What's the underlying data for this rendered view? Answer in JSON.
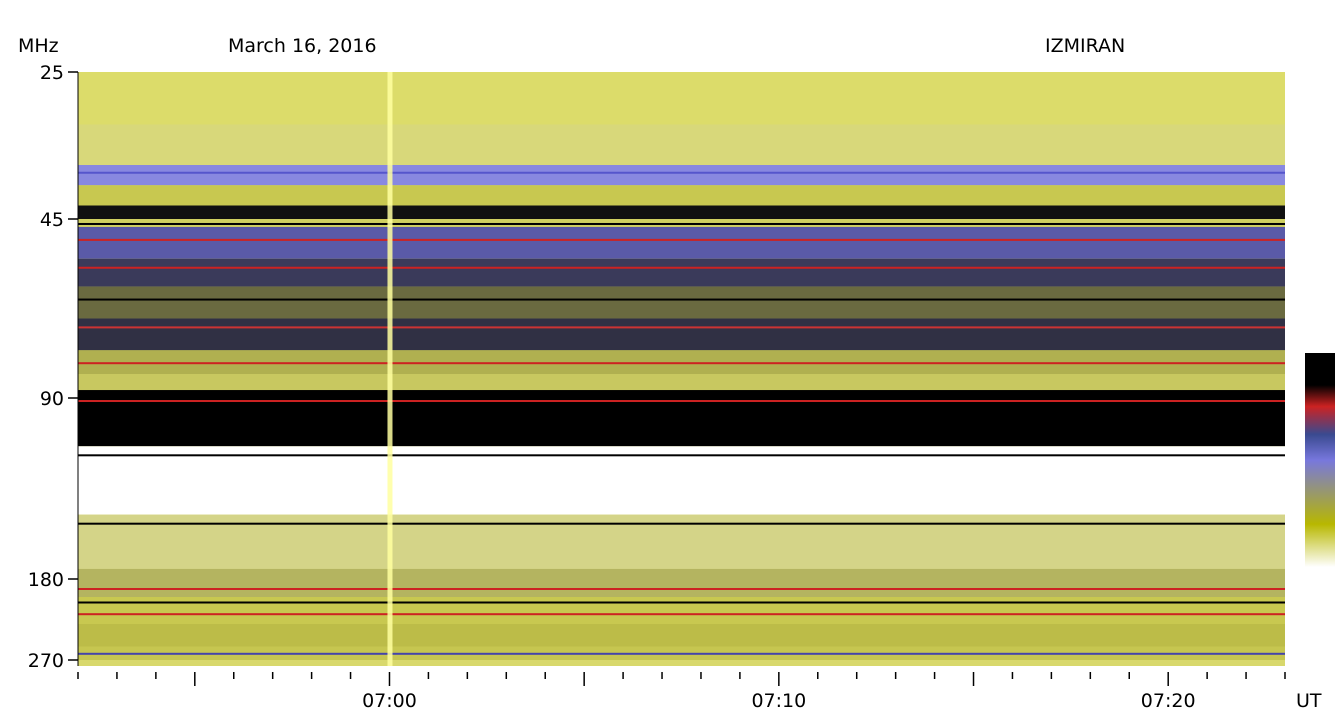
{
  "header": {
    "unit_label": "MHz",
    "date": "March 16, 2016",
    "observatory": "IZMIRAN",
    "time_unit": "UT"
  },
  "chart_data": {
    "type": "heatmap",
    "title": "March 16, 2016",
    "xlabel": "UT",
    "ylabel": "MHz",
    "y_ticks": [
      {
        "label": "25",
        "value": 25
      },
      {
        "label": "45",
        "value": 45
      },
      {
        "label": "90",
        "value": 90
      },
      {
        "label": "180",
        "value": 180
      },
      {
        "label": "270",
        "value": 270
      }
    ],
    "x_start": "06:52",
    "x_end": "07:23",
    "x_ticks": [
      {
        "label": "07:00",
        "value": "07:00"
      },
      {
        "label": "07:10",
        "value": "07:10"
      },
      {
        "label": "07:20",
        "value": "07:20"
      }
    ],
    "colorbar": [
      "#ffffff",
      "#b8b800",
      "#7777dd",
      "#cc2222",
      "#000000"
    ],
    "bands": [
      {
        "from": 25,
        "to": 31,
        "color": "#dcdc6a"
      },
      {
        "from": 31,
        "to": 37,
        "color": "#d8d87a"
      },
      {
        "from": 37,
        "to": 40,
        "color": "#8888e0"
      },
      {
        "from": 40,
        "to": 43,
        "color": "#c8c850"
      },
      {
        "from": 43,
        "to": 45,
        "color": "#101010"
      },
      {
        "from": 45,
        "to": 47,
        "color": "#d0d060"
      },
      {
        "from": 47,
        "to": 55,
        "color": "#5a5aa8"
      },
      {
        "from": 55,
        "to": 62,
        "color": "#3a3a5a"
      },
      {
        "from": 62,
        "to": 70,
        "color": "#6a6a40"
      },
      {
        "from": 70,
        "to": 78,
        "color": "#303044"
      },
      {
        "from": 78,
        "to": 84,
        "color": "#b0b050"
      },
      {
        "from": 84,
        "to": 88,
        "color": "#c8c860"
      },
      {
        "from": 88,
        "to": 114,
        "color": "#000000"
      },
      {
        "from": 114,
        "to": 148,
        "color": "#ffffff"
      },
      {
        "from": 148,
        "to": 175,
        "color": "#d4d488"
      },
      {
        "from": 175,
        "to": 200,
        "color": "#b4b460"
      },
      {
        "from": 200,
        "to": 230,
        "color": "#c8c850"
      },
      {
        "from": 230,
        "to": 255,
        "color": "#bcbc48"
      },
      {
        "from": 255,
        "to": 270,
        "color": "#c6c650"
      }
    ],
    "lines": [
      {
        "freq": 38,
        "color": "#5555cc"
      },
      {
        "freq": 46,
        "color": "#000000"
      },
      {
        "freq": 50,
        "color": "#cc2222"
      },
      {
        "freq": 57,
        "color": "#cc2222"
      },
      {
        "freq": 65,
        "color": "#000000"
      },
      {
        "freq": 72,
        "color": "#cc3333"
      },
      {
        "freq": 81,
        "color": "#cc2222"
      },
      {
        "freq": 91,
        "color": "#cc2222"
      },
      {
        "freq": 118,
        "color": "#000000"
      },
      {
        "freq": 152,
        "color": "#000000"
      },
      {
        "freq": 190,
        "color": "#cc2222"
      },
      {
        "freq": 205,
        "color": "#000000"
      },
      {
        "freq": 218,
        "color": "#cc2222"
      },
      {
        "freq": 262,
        "color": "#4444aa"
      }
    ],
    "burst_columns": [
      {
        "time": "07:00",
        "color": "#ffffa0"
      }
    ],
    "grid": false
  }
}
